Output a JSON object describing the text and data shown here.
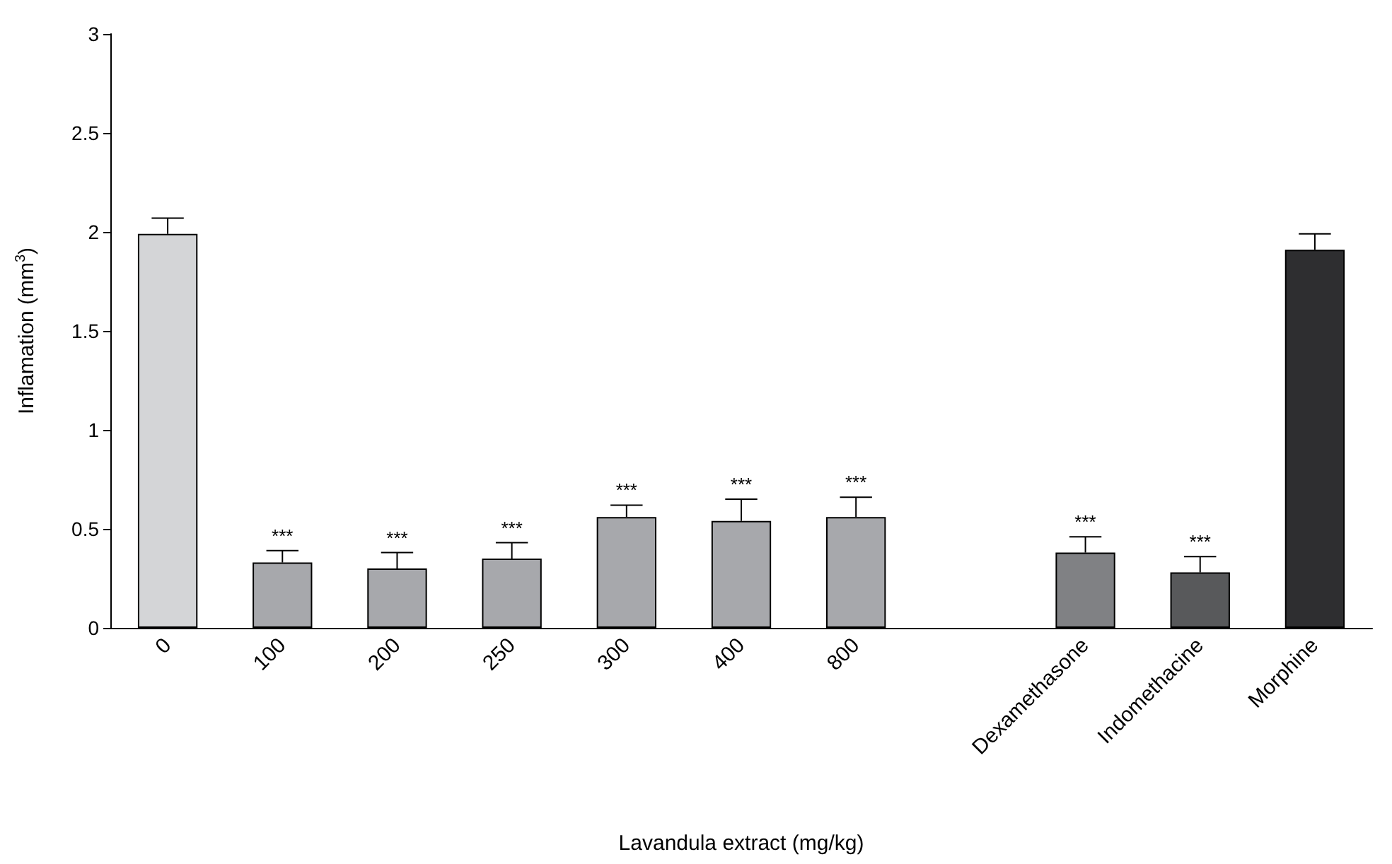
{
  "chart_data": {
    "type": "bar",
    "xlabel": "Lavandula extract (mg/kg)",
    "ylabel": "Inflamation (mm$^{3}$)",
    "categories": [
      "0",
      "100",
      "200",
      "250",
      "300",
      "400",
      "800",
      null,
      "Dexamethasone",
      "Indomethacine",
      "Morphine"
    ],
    "values": [
      1.99,
      0.33,
      0.3,
      0.35,
      0.56,
      0.54,
      0.56,
      null,
      0.38,
      0.28,
      1.91
    ],
    "errors": [
      [
        1.99,
        2.07
      ],
      [
        0.33,
        0.39
      ],
      [
        0.3,
        0.38
      ],
      [
        0.35,
        0.43
      ],
      [
        0.56,
        0.62
      ],
      [
        0.54,
        0.65
      ],
      [
        0.56,
        0.66
      ],
      null,
      [
        0.38,
        0.46
      ],
      [
        0.28,
        0.36
      ],
      [
        1.91,
        1.99
      ]
    ],
    "colors": [
      "#d4d5d7",
      "#a7a8ac",
      "#a7a8ac",
      "#a7a8ac",
      "#a7a8ac",
      "#a7a8ac",
      "#a7a8ac",
      "#a7a8ac",
      "#808184",
      "#58595b",
      "#2e2e30"
    ],
    "ylim": [
      0,
      3
    ],
    "yticks": [
      0,
      0.5,
      1,
      1.5,
      2,
      2.5,
      3
    ],
    "grid": false,
    "annotations": [
      {
        "text": "***",
        "x": "100",
        "y": 0.39
      },
      {
        "text": "***",
        "x": "200",
        "y": 0.38
      },
      {
        "text": "***",
        "x": "250",
        "y": 0.43
      },
      {
        "text": "***",
        "x": "300",
        "y": 0.62
      },
      {
        "text": "***",
        "x": "400",
        "y": 0.65
      },
      {
        "text": "***",
        "x": "800",
        "y": 0.66
      },
      {
        "text": "***",
        "x": "Dexamethasone",
        "y": 0.46
      },
      {
        "text": "***",
        "x": "Indomethacine",
        "y": 0.36
      }
    ]
  }
}
